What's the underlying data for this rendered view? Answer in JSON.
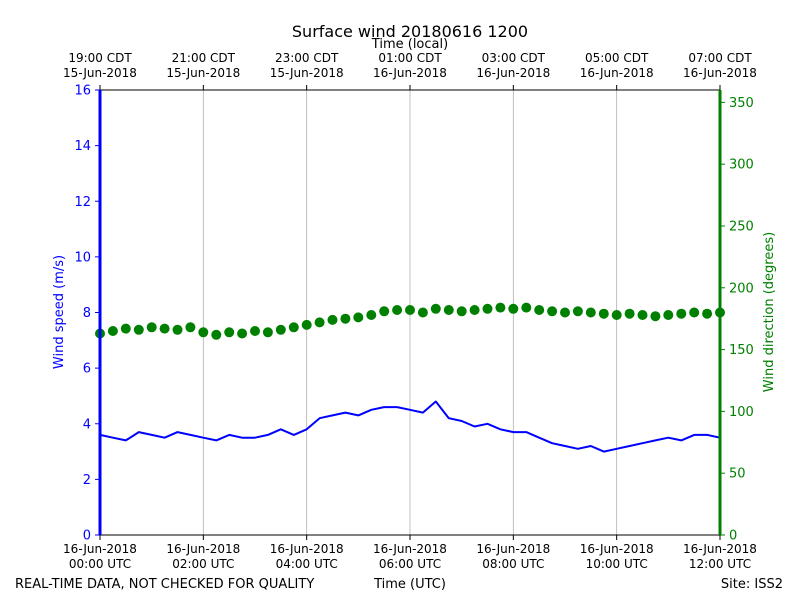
{
  "chart_data": {
    "type": "line",
    "title": "Surface wind 20180616 1200",
    "top_axis_label": "Time (local)",
    "xlabel": "Time (UTC)",
    "ylabel": "Wind speed (m/s)",
    "y2label": "Wind direction (degrees)",
    "ylim": [
      0,
      16
    ],
    "y2lim": [
      0,
      360
    ],
    "yticks": [
      0,
      2,
      4,
      6,
      8,
      10,
      12,
      14,
      16
    ],
    "y2ticks": [
      0,
      50,
      100,
      150,
      200,
      250,
      300,
      350
    ],
    "xlim_hours": [
      0,
      12
    ],
    "x_ticks": [
      {
        "hour": 0,
        "date": "16-Jun-2018",
        "time": "00:00 UTC"
      },
      {
        "hour": 2,
        "date": "16-Jun-2018",
        "time": "02:00 UTC"
      },
      {
        "hour": 4,
        "date": "16-Jun-2018",
        "time": "04:00 UTC"
      },
      {
        "hour": 6,
        "date": "16-Jun-2018",
        "time": "06:00 UTC"
      },
      {
        "hour": 8,
        "date": "16-Jun-2018",
        "time": "08:00 UTC"
      },
      {
        "hour": 10,
        "date": "16-Jun-2018",
        "time": "10:00 UTC"
      },
      {
        "hour": 12,
        "date": "16-Jun-2018",
        "time": "12:00 UTC"
      }
    ],
    "top_ticks": [
      {
        "hour": 0,
        "time": "19:00 CDT",
        "date": "15-Jun-2018"
      },
      {
        "hour": 2,
        "time": "21:00 CDT",
        "date": "15-Jun-2018"
      },
      {
        "hour": 4,
        "time": "23:00 CDT",
        "date": "15-Jun-2018"
      },
      {
        "hour": 6,
        "time": "01:00 CDT",
        "date": "16-Jun-2018"
      },
      {
        "hour": 8,
        "time": "03:00 CDT",
        "date": "16-Jun-2018"
      },
      {
        "hour": 10,
        "time": "05:00 CDT",
        "date": "16-Jun-2018"
      },
      {
        "hour": 12,
        "time": "07:00 CDT",
        "date": "16-Jun-2018"
      }
    ],
    "grid": "vertical",
    "colors": {
      "speed": "#0000ff",
      "direction": "#008000"
    },
    "series": [
      {
        "axis": "left",
        "style": "line",
        "x_hours": [
          0,
          0.25,
          0.5,
          0.75,
          1,
          1.25,
          1.5,
          1.75,
          2,
          2.25,
          2.5,
          2.75,
          3,
          3.25,
          3.5,
          3.75,
          4,
          4.25,
          4.5,
          4.75,
          5,
          5.25,
          5.5,
          5.75,
          6,
          6.25,
          6.5,
          6.75,
          7,
          7.25,
          7.5,
          7.75,
          8,
          8.25,
          8.5,
          8.75,
          9,
          9.25,
          9.5,
          9.75,
          10,
          10.25,
          10.5,
          10.75,
          11,
          11.25,
          11.5,
          11.75,
          12
        ],
        "values": [
          3.6,
          3.5,
          3.4,
          3.7,
          3.6,
          3.5,
          3.7,
          3.6,
          3.5,
          3.4,
          3.6,
          3.5,
          3.5,
          3.6,
          3.8,
          3.6,
          3.8,
          4.2,
          4.3,
          4.4,
          4.3,
          4.5,
          4.6,
          4.6,
          4.5,
          4.4,
          4.8,
          4.2,
          4.1,
          3.9,
          4.0,
          3.8,
          3.7,
          3.7,
          3.5,
          3.3,
          3.2,
          3.1,
          3.2,
          3.0,
          3.1,
          3.2,
          3.3,
          3.4,
          3.5,
          3.4,
          3.6,
          3.6,
          3.5
        ]
      },
      {
        "axis": "right",
        "style": "markers",
        "x_hours": [
          0,
          0.25,
          0.5,
          0.75,
          1,
          1.25,
          1.5,
          1.75,
          2,
          2.25,
          2.5,
          2.75,
          3,
          3.25,
          3.5,
          3.75,
          4,
          4.25,
          4.5,
          4.75,
          5,
          5.25,
          5.5,
          5.75,
          6,
          6.25,
          6.5,
          6.75,
          7,
          7.25,
          7.5,
          7.75,
          8,
          8.25,
          8.5,
          8.75,
          9,
          9.25,
          9.5,
          9.75,
          10,
          10.25,
          10.5,
          10.75,
          11,
          11.25,
          11.5,
          11.75,
          12
        ],
        "values": [
          163,
          165,
          167,
          166,
          168,
          167,
          166,
          168,
          164,
          162,
          164,
          163,
          165,
          164,
          166,
          168,
          170,
          172,
          174,
          175,
          176,
          178,
          181,
          182,
          182,
          180,
          183,
          182,
          181,
          182,
          183,
          184,
          183,
          184,
          182,
          181,
          180,
          181,
          180,
          179,
          178,
          179,
          178,
          177,
          178,
          179,
          180,
          179,
          180
        ]
      }
    ]
  },
  "footer": {
    "left": "REAL-TIME DATA, NOT CHECKED FOR QUALITY",
    "right": "Site: ISS2"
  }
}
